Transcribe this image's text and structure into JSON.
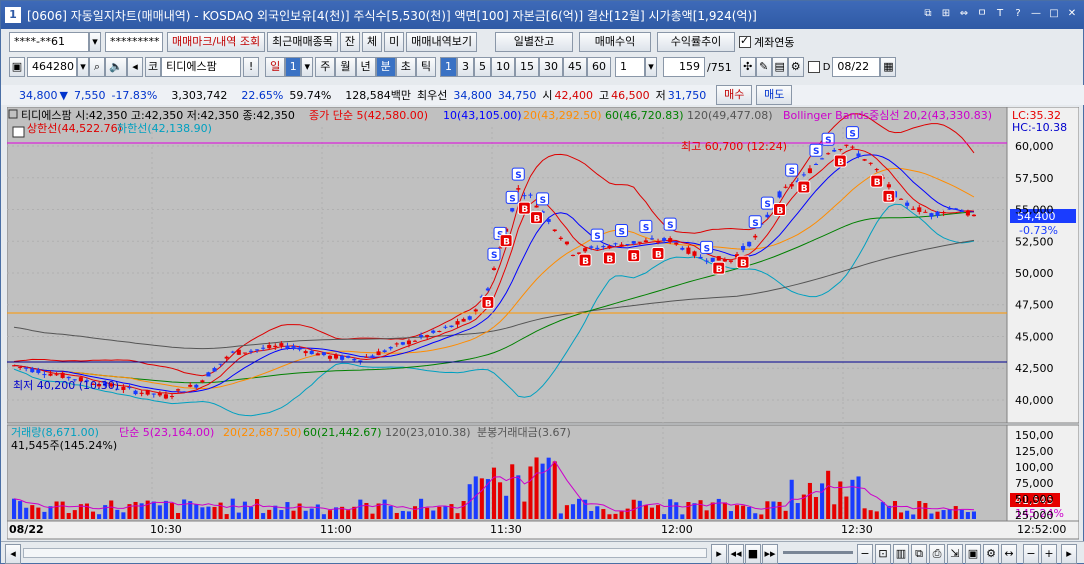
{
  "title": {
    "badge": "1",
    "text": "[0606] 자동일지차트(매매내역) - KOSDAQ 외국인보유[4(천)] 주식수[5,530(천)] 액면[100] 자본금[6(억)] 결산[12월] 시가총액[1,924(억)]",
    "buttons": [
      "⧉",
      "⊞",
      "⇔",
      "ㅁ",
      "T",
      "?",
      "—",
      "□",
      "✕"
    ]
  },
  "toolbar1": {
    "account": "****-**61",
    "password": "*********",
    "btn_mark": "매매마크/내역 조회",
    "btn_recent": "최근매매종목",
    "btn_jan": "잔",
    "btn_che": "체",
    "btn_mi": "미",
    "btn_view": "매매내역보기",
    "btn_daily": "일별잔고",
    "btn_profit": "매매수익",
    "btn_curve": "수익률추이",
    "link_label": "계좌연동"
  },
  "toolbar2": {
    "code": "464280",
    "code_prefix": "코",
    "name": "티디에스팜",
    "period_day": "일",
    "period_1": "1",
    "periods": [
      "주",
      "월",
      "년",
      "분",
      "초",
      "틱"
    ],
    "intervals": [
      "1",
      "3",
      "5",
      "10",
      "15",
      "30",
      "45",
      "60"
    ],
    "count_sel": "1",
    "count": "159",
    "total": "/751",
    "date": "08/22"
  },
  "quote": {
    "price": "34,800",
    "arrow": "▼",
    "change": "7,550",
    "rate": "-17.83%",
    "volume": "3,303,742",
    "vrate1": "22.65%",
    "vrate2": "59.74%",
    "amount": "128,584백만",
    "pref_label": "최우선",
    "bid": "34,800",
    "ask": "34,750",
    "open_label": "시",
    "open": "42,400",
    "high_label": "고",
    "high": "46,500",
    "low_label": "저",
    "low": "31,750",
    "buy": "매수",
    "sell": "매도"
  },
  "price_panel": {
    "ohlc": "티디에스팜 시:42,350 고:42,350 저:42,350 종:42,350",
    "ma_label": "종가 단순 5(42,580.00)",
    "ma10": "10(43,105.00)",
    "ma20": "20(43,292.50)",
    "ma60": "60(46,720.83)",
    "ma120": "120(49,477.08)",
    "bb_label": "Bollinger Bands중심선 20,2(43,330.83)",
    "bb_upper": "상한선(44,522.76)",
    "bb_lower": "하한선(42,138.90)",
    "lc": "LC:35.32",
    "hc": "HC:-10.38",
    "high_note": "최고 60,700 (12:24)",
    "low_note": "최저 40,200 (10:30)",
    "cur_price": "54,400",
    "cur_rate": "-0.73%",
    "yticks": [
      "60,000",
      "57,500",
      "55,000",
      "52,500",
      "50,000",
      "47,500",
      "45,000",
      "42,500",
      "40,000"
    ]
  },
  "volume_panel": {
    "label": "거래량(8,671.00)",
    "ma5": "단순 5(23,164.00)",
    "ma20": "20(22,687.50)",
    "ma60": "60(21,442.67)",
    "ma120": "120(23,010.38)",
    "amt": "분봉거래대금(3.67)",
    "sub": "41,545주(145.24%)",
    "cur": "41,545",
    "cur_rate": "145.24%",
    "yticks": [
      "150,00",
      "125,00",
      "100,00",
      "75,000",
      "50,000",
      "25,000"
    ]
  },
  "xaxis": {
    "date": "08/22",
    "ticks": [
      "10:30",
      "11:00",
      "11:30",
      "12:00",
      "12:30"
    ],
    "time": "12:52:00"
  },
  "colors": {
    "ma5": "#e60000",
    "ma10": "#0000ff",
    "ma20": "#ff8c00",
    "ma60": "#008000",
    "ma120": "#555555",
    "bb_upper": "#dd0000",
    "bb_lower": "#00a0c0",
    "up": "#e60000",
    "down": "#1a3cff"
  }
}
